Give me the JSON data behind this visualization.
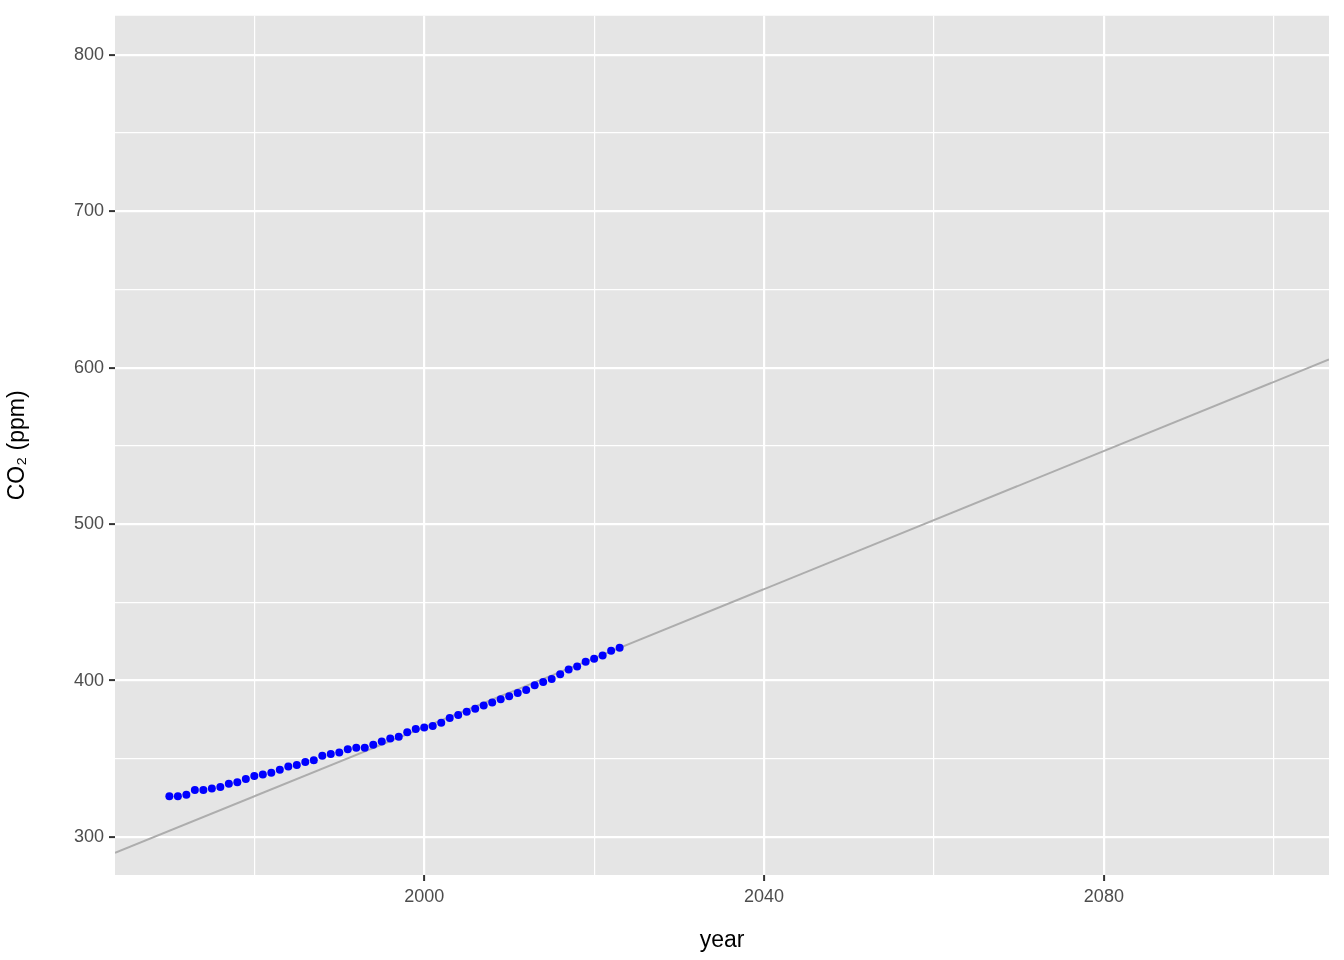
{
  "chart_data": {
    "type": "scatter",
    "xlabel": "year",
    "ylabel": "CO₂ (ppm)",
    "xlim": [
      1963.6,
      2106.5
    ],
    "ylim": [
      275.7,
      824.9
    ],
    "xticks": [
      {
        "value": 1980,
        "label": null
      },
      2000,
      {
        "value": 2020,
        "label": null
      },
      2040,
      {
        "value": 2060,
        "label": null
      },
      2080,
      {
        "value": 2100,
        "label": null
      }
    ],
    "yticks": [
      300,
      {
        "value": 350,
        "label": null
      },
      400,
      {
        "value": 450,
        "label": null
      },
      500,
      {
        "value": 550,
        "label": null
      },
      600,
      {
        "value": 650,
        "label": null
      },
      700,
      {
        "value": 750,
        "label": null
      },
      800
    ],
    "grid": true,
    "legend": false,
    "marker": "circle",
    "series": [
      {
        "type": "line",
        "color": "#adadad",
        "marker": "none",
        "x": [
          1963.6,
          2106.5
        ],
        "values": [
          289.8,
          605.2
        ]
      },
      {
        "type": "scatter",
        "color": "#0000ff",
        "x": [
          1970,
          1971,
          1972,
          1973,
          1974,
          1975,
          1976,
          1977,
          1978,
          1979,
          1980,
          1981,
          1982,
          1983,
          1984,
          1985,
          1986,
          1987,
          1988,
          1989,
          1990,
          1991,
          1992,
          1993,
          1994,
          1995,
          1996,
          1997,
          1998,
          1999,
          2000,
          2001,
          2002,
          2003,
          2004,
          2005,
          2006,
          2007,
          2008,
          2009,
          2010,
          2011,
          2012,
          2013,
          2014,
          2015,
          2016,
          2017,
          2018,
          2019,
          2020,
          2021,
          2022,
          2023
        ],
        "values": [
          326,
          326,
          327,
          330,
          330,
          331,
          332,
          334,
          335,
          337,
          339,
          340,
          341,
          343,
          345,
          346,
          348,
          349,
          352,
          353,
          354,
          356,
          357,
          357,
          359,
          361,
          363,
          364,
          367,
          369,
          370,
          371,
          373,
          376,
          378,
          380,
          382,
          384,
          386,
          388,
          390,
          392,
          394,
          397,
          399,
          401,
          404,
          407,
          409,
          412,
          414,
          416,
          419,
          421
        ]
      }
    ]
  }
}
